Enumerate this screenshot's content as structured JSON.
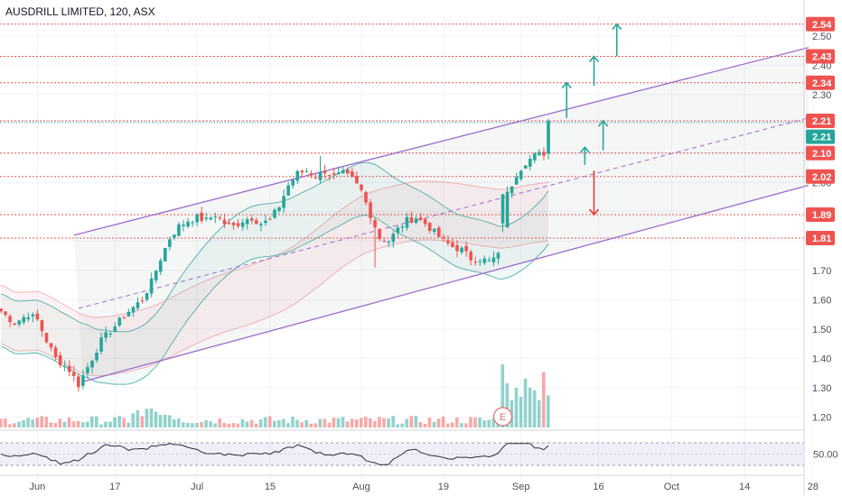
{
  "chart_data": {
    "type": "candlestick",
    "title": "AUSDRILL LIMITED, 120, ASX",
    "y_range": [
      1.17,
      2.57
    ],
    "y_ticks": [
      1.2,
      1.3,
      1.4,
      1.5,
      1.6,
      1.7,
      1.8,
      1.9,
      2.0,
      2.1,
      2.2,
      2.3,
      2.4,
      2.5
    ],
    "y_tick_labels": [
      "1.20",
      "1.30",
      "1.40",
      "1.50",
      "1.60",
      "1.70",
      "1.80",
      "1.90",
      "2.00",
      "2.10",
      "2.20",
      "2.30",
      "2.40",
      "2.50"
    ],
    "x_labels": [
      "Jun",
      "17",
      "Jul",
      "15",
      "Aug",
      "19",
      "Sep",
      "16",
      "Oct",
      "14",
      "28"
    ],
    "x_label_index": [
      8,
      25,
      43,
      59,
      79,
      97,
      114,
      131,
      147,
      163,
      178
    ],
    "last_price": "2.21",
    "levels": [
      {
        "value": 2.54,
        "label": "2.54"
      },
      {
        "value": 2.43,
        "label": "2.43"
      },
      {
        "value": 2.34,
        "label": "2.34"
      },
      {
        "value": 2.21,
        "label": "2.21"
      },
      {
        "value": 2.1,
        "label": "2.10"
      },
      {
        "value": 2.02,
        "label": "2.02"
      },
      {
        "value": 1.89,
        "label": "1.89"
      },
      {
        "value": 1.81,
        "label": "1.81"
      }
    ],
    "channel": {
      "upper": [
        [
          16,
          1.82
        ],
        [
          177,
          2.46
        ]
      ],
      "lower": [
        [
          18,
          1.32
        ],
        [
          177,
          1.99
        ]
      ],
      "mid": [
        [
          17,
          1.57
        ],
        [
          177,
          2.22
        ]
      ]
    },
    "arrows": [
      {
        "x": 124,
        "from": 2.22,
        "to": 2.34,
        "dir": "up"
      },
      {
        "x": 128,
        "from": 2.06,
        "to": 2.12,
        "dir": "up"
      },
      {
        "x": 130,
        "from": 2.33,
        "to": 2.43,
        "dir": "up"
      },
      {
        "x": 132,
        "from": 2.11,
        "to": 2.21,
        "dir": "up"
      },
      {
        "x": 135,
        "from": 2.43,
        "to": 2.54,
        "dir": "up"
      },
      {
        "x": 130,
        "from": 2.04,
        "to": 1.89,
        "dir": "down"
      }
    ],
    "volume_max": 120,
    "earnings_marker": "E",
    "rsi": {
      "level_label": "50.00",
      "level": 50,
      "range": [
        20,
        80
      ]
    },
    "anchors": [
      [
        0,
        1.56
      ],
      [
        3,
        1.52
      ],
      [
        6,
        1.55
      ],
      [
        8,
        1.53
      ],
      [
        10,
        1.46
      ],
      [
        12,
        1.4
      ],
      [
        15,
        1.36
      ],
      [
        17,
        1.31
      ],
      [
        20,
        1.4
      ],
      [
        22,
        1.46
      ],
      [
        25,
        1.51
      ],
      [
        28,
        1.56
      ],
      [
        31,
        1.6
      ],
      [
        33,
        1.66
      ],
      [
        35,
        1.74
      ],
      [
        37,
        1.81
      ],
      [
        39,
        1.85
      ],
      [
        41,
        1.87
      ],
      [
        43,
        1.88
      ],
      [
        45,
        1.87
      ],
      [
        47,
        1.89
      ],
      [
        49,
        1.86
      ],
      [
        51,
        1.85
      ],
      [
        53,
        1.87
      ],
      [
        55,
        1.88
      ],
      [
        57,
        1.86
      ],
      [
        59,
        1.87
      ],
      [
        61,
        1.92
      ],
      [
        63,
        1.99
      ],
      [
        65,
        2.03
      ],
      [
        67,
        2.04
      ],
      [
        69,
        2.02
      ],
      [
        71,
        2.04
      ],
      [
        73,
        2.02
      ],
      [
        75,
        2.03
      ],
      [
        77,
        2.01
      ],
      [
        79,
        1.97
      ],
      [
        81,
        1.89
      ],
      [
        83,
        1.81
      ],
      [
        85,
        1.8
      ],
      [
        87,
        1.84
      ],
      [
        89,
        1.87
      ],
      [
        91,
        1.88
      ],
      [
        93,
        1.86
      ],
      [
        95,
        1.83
      ],
      [
        97,
        1.8
      ],
      [
        99,
        1.78
      ],
      [
        101,
        1.77
      ],
      [
        103,
        1.74
      ],
      [
        105,
        1.74
      ],
      [
        107,
        1.73
      ],
      [
        109,
        1.75
      ],
      [
        111,
        1.96
      ],
      [
        113,
        2.03
      ],
      [
        115,
        2.07
      ],
      [
        117,
        2.09
      ],
      [
        119,
        2.1
      ],
      [
        120,
        2.21
      ]
    ]
  }
}
